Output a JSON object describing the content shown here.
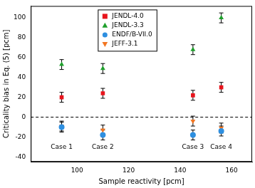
{
  "chart_data": {
    "type": "scatter",
    "x_label": "Sample reactivity [pcm]",
    "y_label": "Criticality bias in Eq. (5) [pcm]",
    "xlim": [
      82,
      168
    ],
    "xticks": [
      100,
      120,
      140,
      160
    ],
    "ylim": [
      -45,
      112
    ],
    "yticks": [
      -40,
      -20,
      0,
      20,
      40,
      60,
      80,
      100
    ],
    "grid": false,
    "legend": "top",
    "hlines": [
      0
    ],
    "series": [
      {
        "name": "JENDL-4.0",
        "color": "#e8141c",
        "marker": "square",
        "x": [
          94,
          110,
          145,
          156
        ],
        "values": [
          20,
          24,
          22,
          30
        ],
        "errors": [
          5,
          5,
          5,
          5
        ]
      },
      {
        "name": "JENDL-3.3",
        "color": "#1fa02c",
        "marker": "triangle-up",
        "x": [
          94,
          110,
          145,
          156
        ],
        "values": [
          53,
          49,
          68,
          100
        ],
        "errors": [
          5,
          5,
          5,
          5
        ]
      },
      {
        "name": "ENDF/B-VII.0",
        "color": "#2e8fe0",
        "marker": "circle",
        "x": [
          94,
          110,
          145,
          156
        ],
        "values": [
          -10,
          -18,
          -18,
          -14
        ],
        "errors": [
          5,
          5,
          5,
          5
        ]
      },
      {
        "name": "JEFF-3.1",
        "color": "#f27622",
        "marker": "triangle-down",
        "x": [
          94,
          110,
          145,
          156
        ],
        "values": [
          -9,
          -13,
          -4,
          -11
        ],
        "errors": [
          5,
          5,
          5,
          5
        ]
      }
    ],
    "annotations": [
      {
        "text": "Case 1",
        "x": 94,
        "y": -30
      },
      {
        "text": "Case 2",
        "x": 110,
        "y": -30
      },
      {
        "text": "Case 3",
        "x": 145,
        "y": -30
      },
      {
        "text": "Case 4",
        "x": 156,
        "y": -30
      }
    ]
  }
}
